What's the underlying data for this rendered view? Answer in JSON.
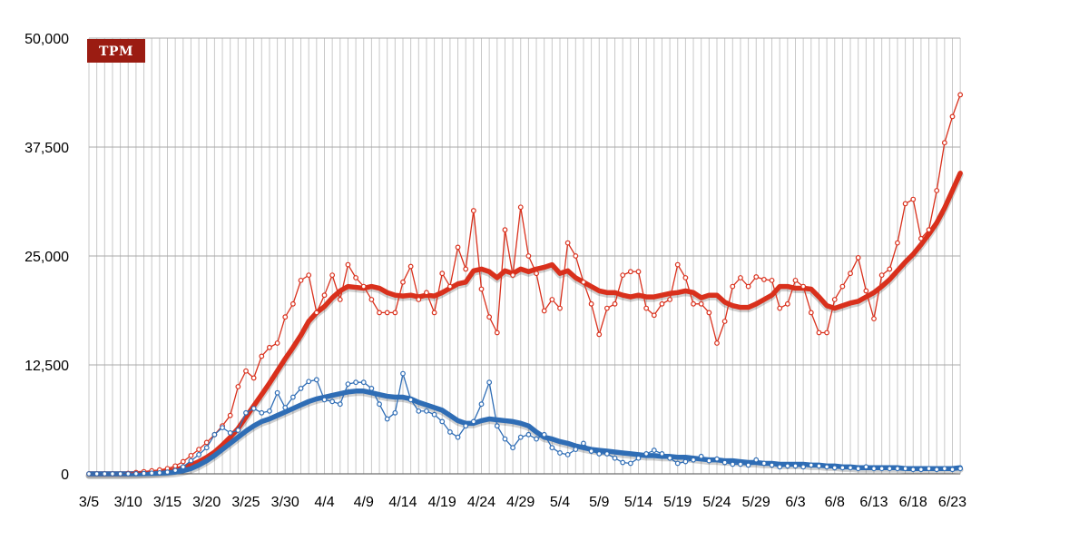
{
  "logo": {
    "text": "TPM",
    "color": "#9b1c12"
  },
  "chart_data": {
    "type": "line",
    "title": "",
    "xlabel": "",
    "ylabel": "",
    "ylim": [
      0,
      50000
    ],
    "y_ticks": [
      0,
      12500,
      25000,
      37500,
      50000
    ],
    "y_tick_labels": [
      "0",
      "12,500",
      "25,000",
      "37,500",
      "50,000"
    ],
    "start_date": "3/5",
    "x_tick_labels": [
      "3/5",
      "3/10",
      "3/15",
      "3/20",
      "3/25",
      "3/30",
      "4/4",
      "4/9",
      "4/14",
      "4/19",
      "4/24",
      "4/29",
      "5/4",
      "5/9",
      "5/14",
      "5/19",
      "5/24",
      "5/29",
      "6/3",
      "6/8",
      "6/13",
      "6/18",
      "6/23"
    ],
    "grid": true,
    "colors": {
      "red": "#d9301c",
      "blue": "#2f6db5",
      "grid": "#c8c8c8"
    },
    "series": [
      {
        "style": "daily",
        "color": "#d9301c",
        "values": [
          0,
          0,
          0,
          0,
          0,
          50,
          150,
          250,
          350,
          450,
          600,
          900,
          1400,
          2100,
          2800,
          3600,
          4500,
          5500,
          6700,
          10000,
          11800,
          11000,
          13500,
          14500,
          15000,
          18000,
          19500,
          22200,
          22800,
          18500,
          20500,
          22800,
          20000,
          24000,
          22500,
          21500,
          20000,
          18500,
          18500,
          18500,
          22000,
          23800,
          20000,
          20800,
          18500,
          23000,
          21500,
          26000,
          23500,
          30200,
          21200,
          18000,
          16200,
          28000,
          22800,
          30600,
          25000,
          23000,
          18700,
          20000,
          19000,
          26500,
          25000,
          22000,
          19500,
          16000,
          19000,
          19500,
          22800,
          23200,
          23200,
          19000,
          18200,
          19500,
          20000,
          24000,
          22500,
          19500,
          19500,
          18500,
          15000,
          17500,
          21500,
          22500,
          21500,
          22600,
          22300,
          22200,
          19000,
          19500,
          22200,
          21500,
          18500,
          16200,
          16200,
          20000,
          21500,
          23000,
          24800,
          21000,
          17800,
          22800,
          23500,
          26500,
          31000,
          31500,
          27000,
          28000,
          32500,
          38000,
          41000,
          43500
        ]
      },
      {
        "style": "average",
        "color": "#d9301c",
        "values": [
          0,
          0,
          0,
          0,
          0,
          0,
          20,
          60,
          120,
          200,
          300,
          450,
          700,
          1000,
          1400,
          1900,
          2500,
          3300,
          4200,
          5200,
          6500,
          7800,
          9100,
          10400,
          11800,
          13200,
          14500,
          15900,
          17500,
          18500,
          19200,
          20200,
          21000,
          21500,
          21400,
          21300,
          21500,
          21300,
          20800,
          20500,
          20400,
          20500,
          20300,
          20500,
          20400,
          20800,
          21300,
          21800,
          22000,
          23300,
          23500,
          23200,
          22500,
          23300,
          23000,
          23500,
          23200,
          23500,
          23700,
          24000,
          23000,
          23300,
          22500,
          22000,
          21500,
          21000,
          20800,
          20800,
          20500,
          20300,
          20500,
          20300,
          20300,
          20500,
          20700,
          20800,
          21000,
          20800,
          20200,
          20500,
          20500,
          19700,
          19300,
          19100,
          19100,
          19500,
          20000,
          20500,
          21500,
          21500,
          21300,
          21300,
          21200,
          20300,
          19300,
          19000,
          19300,
          19600,
          19800,
          20300,
          20800,
          21500,
          22300,
          23300,
          24300,
          25200,
          26300,
          27500,
          28800,
          30500,
          32500,
          34500
        ]
      },
      {
        "style": "daily",
        "color": "#2f6db5",
        "values": [
          0,
          0,
          0,
          0,
          0,
          0,
          20,
          50,
          80,
          120,
          200,
          400,
          800,
          1500,
          2200,
          3000,
          4500,
          5300,
          4700,
          5000,
          7000,
          7500,
          7000,
          7200,
          9300,
          7600,
          8800,
          9800,
          10600,
          10800,
          8500,
          8300,
          8000,
          10300,
          10500,
          10500,
          9800,
          8000,
          6300,
          7000,
          11500,
          8500,
          7200,
          7200,
          6800,
          6000,
          4800,
          4200,
          5500,
          6000,
          8000,
          10500,
          5500,
          4000,
          3000,
          4200,
          4500,
          4000,
          4500,
          3000,
          2400,
          2200,
          2800,
          3500,
          2600,
          2300,
          2300,
          1800,
          1300,
          1200,
          1800,
          2300,
          2700,
          2300,
          1800,
          1200,
          1400,
          1600,
          2000,
          1500,
          1700,
          1300,
          1100,
          1100,
          1000,
          1600,
          1200,
          1000,
          800,
          900,
          900,
          800,
          1000,
          900,
          800,
          700,
          700,
          700,
          600,
          800,
          600,
          600,
          600,
          600,
          600,
          500,
          500,
          600,
          500,
          600,
          500,
          600
        ]
      },
      {
        "style": "average",
        "color": "#2f6db5",
        "values": [
          0,
          0,
          0,
          0,
          0,
          0,
          0,
          20,
          50,
          80,
          120,
          200,
          350,
          600,
          1000,
          1500,
          2100,
          2800,
          3500,
          4200,
          4900,
          5500,
          6000,
          6300,
          6700,
          7100,
          7500,
          7900,
          8300,
          8600,
          8800,
          9000,
          9200,
          9400,
          9500,
          9500,
          9300,
          9100,
          8900,
          8800,
          8800,
          8600,
          8200,
          7900,
          7600,
          7300,
          6700,
          6100,
          5800,
          5800,
          6100,
          6300,
          6200,
          6100,
          6000,
          5800,
          5500,
          4800,
          4200,
          4000,
          3700,
          3500,
          3200,
          3000,
          2800,
          2700,
          2600,
          2500,
          2400,
          2300,
          2200,
          2100,
          2100,
          2000,
          2000,
          1900,
          1900,
          1800,
          1700,
          1600,
          1600,
          1500,
          1500,
          1400,
          1300,
          1300,
          1200,
          1200,
          1100,
          1100,
          1100,
          1100,
          1000,
          1000,
          900,
          900,
          800,
          800,
          700,
          700,
          700,
          700,
          700,
          700,
          600,
          600,
          600,
          600,
          600,
          600,
          600,
          700
        ]
      }
    ]
  }
}
